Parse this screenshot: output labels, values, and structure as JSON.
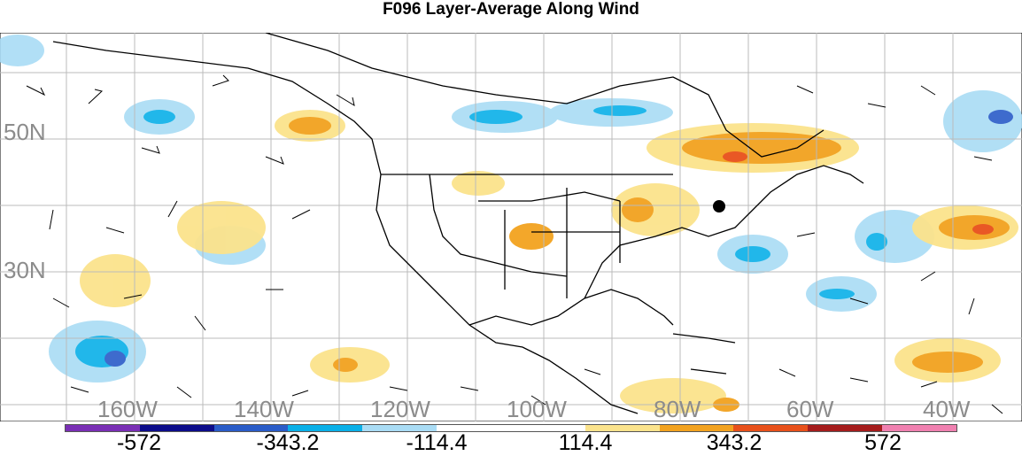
{
  "title": "F096 Layer-Average Along Wind",
  "lat_labels": [
    "50N",
    "30N"
  ],
  "lon_labels": [
    "160W",
    "140W",
    "120W",
    "100W",
    "80W",
    "60W",
    "40W"
  ],
  "colorbar": {
    "labels": [
      "-572",
      "-343.2",
      "-114.4",
      "114.4",
      "343.2",
      "572"
    ],
    "colors": [
      "#7a2fb5",
      "#0c0c8a",
      "#2a5cc8",
      "#0ab0e8",
      "#a9dcf5",
      "#ffffff",
      "#ffffff",
      "#fbe38c",
      "#f2a21f",
      "#e8501a",
      "#a51c1c",
      "#f080b0"
    ]
  }
}
